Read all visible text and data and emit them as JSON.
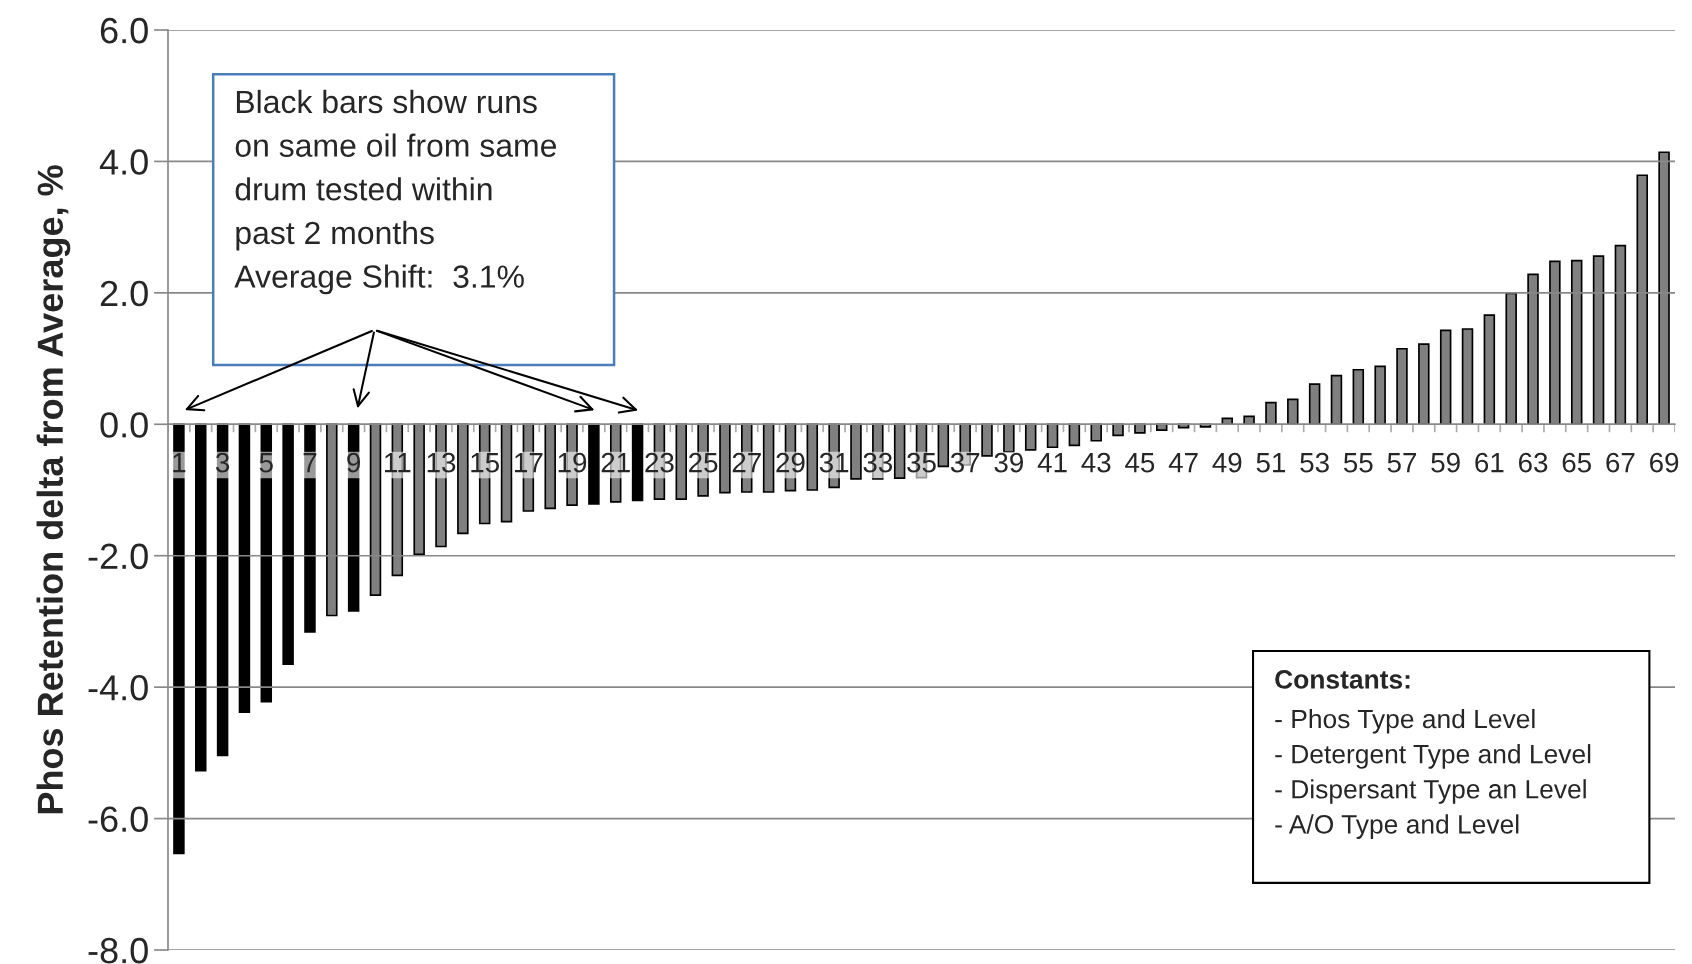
{
  "chart_data": {
    "type": "bar",
    "ylabel": "Phos Retention delta from Average, %",
    "categories": [
      "1",
      null,
      "3",
      null,
      "5",
      null,
      "7",
      null,
      "9",
      null,
      "11",
      null,
      "13",
      null,
      "15",
      null,
      "17",
      null,
      "19",
      null,
      "21",
      null,
      "23",
      null,
      "25",
      null,
      "27",
      null,
      "29",
      null,
      "31",
      null,
      "33",
      null,
      "35",
      null,
      "37",
      null,
      "39",
      null,
      "41",
      null,
      "43",
      null,
      "45",
      null,
      "47",
      null,
      "49",
      null,
      "51",
      null,
      "53",
      null,
      "55",
      null,
      "57",
      null,
      "59",
      null,
      "61",
      null,
      "63",
      null,
      "65",
      null,
      "67",
      null,
      "69"
    ],
    "values": [
      -6.53,
      -5.27,
      -5.04,
      -4.38,
      -4.22,
      -3.65,
      -3.16,
      -2.91,
      -2.84,
      -2.6,
      -2.3,
      -1.98,
      -1.86,
      -1.66,
      -1.51,
      -1.48,
      -1.32,
      -1.28,
      -1.23,
      -1.21,
      -1.18,
      -1.16,
      -1.14,
      -1.14,
      -1.09,
      -1.04,
      -1.03,
      -1.03,
      -1.01,
      -1.0,
      -0.96,
      -0.83,
      -0.83,
      -0.82,
      -0.81,
      -0.64,
      -0.62,
      -0.48,
      -0.42,
      -0.39,
      -0.35,
      -0.32,
      -0.25,
      -0.17,
      -0.13,
      -0.09,
      -0.05,
      -0.04,
      0.09,
      0.12,
      0.33,
      0.38,
      0.61,
      0.74,
      0.83,
      0.88,
      1.15,
      1.22,
      1.43,
      1.45,
      1.66,
      1.99,
      2.28,
      2.48,
      2.49,
      2.56,
      2.72,
      3.79,
      4.14
    ],
    "colors": [
      "#000000",
      "#000000",
      "#000000",
      "#000000",
      "#000000",
      "#000000",
      "#000000",
      "#808080",
      "#000000",
      "#808080",
      "#808080",
      "#808080",
      "#808080",
      "#808080",
      "#808080",
      "#808080",
      "#808080",
      "#808080",
      "#808080",
      "#000000",
      "#808080",
      "#000000",
      "#808080",
      "#808080",
      "#808080",
      "#808080",
      "#808080",
      "#808080",
      "#808080",
      "#808080",
      "#808080",
      "#808080",
      "#808080",
      "#808080",
      "#808080",
      "#808080",
      "#808080",
      "#808080",
      "#808080",
      "#808080",
      "#808080",
      "#808080",
      "#808080",
      "#808080",
      "#808080",
      "#808080",
      "#808080",
      "#808080",
      "#808080",
      "#808080",
      "#808080",
      "#808080",
      "#808080",
      "#808080",
      "#808080",
      "#808080",
      "#808080",
      "#808080",
      "#808080",
      "#808080",
      "#808080",
      "#808080",
      "#808080",
      "#808080",
      "#808080",
      "#808080",
      "#808080",
      "#808080",
      "#808080"
    ],
    "ylim": [
      -8.0,
      6.0
    ],
    "yticks": [
      {
        "value": -8,
        "label": "-8.0"
      },
      {
        "value": -6,
        "label": "-6.0"
      },
      {
        "value": -4,
        "label": "-4.0"
      },
      {
        "value": -2,
        "label": "-2.0"
      },
      {
        "value": 0,
        "label": "0.0"
      },
      {
        "value": 2,
        "label": "2.0"
      },
      {
        "value": 4,
        "label": "4.0"
      },
      {
        "value": 6,
        "label": "6.0"
      }
    ],
    "grid": "y",
    "annotations": [
      "Black bars show runs\non same oil from same\ndrum tested within\npast 2 months\nAverage Shift:  3.1%",
      "Constants:",
      "- Phos Type and Level\n- Detergent Type and Level\n- Dispersant Type an Level\n- A/O Type and Level"
    ]
  }
}
